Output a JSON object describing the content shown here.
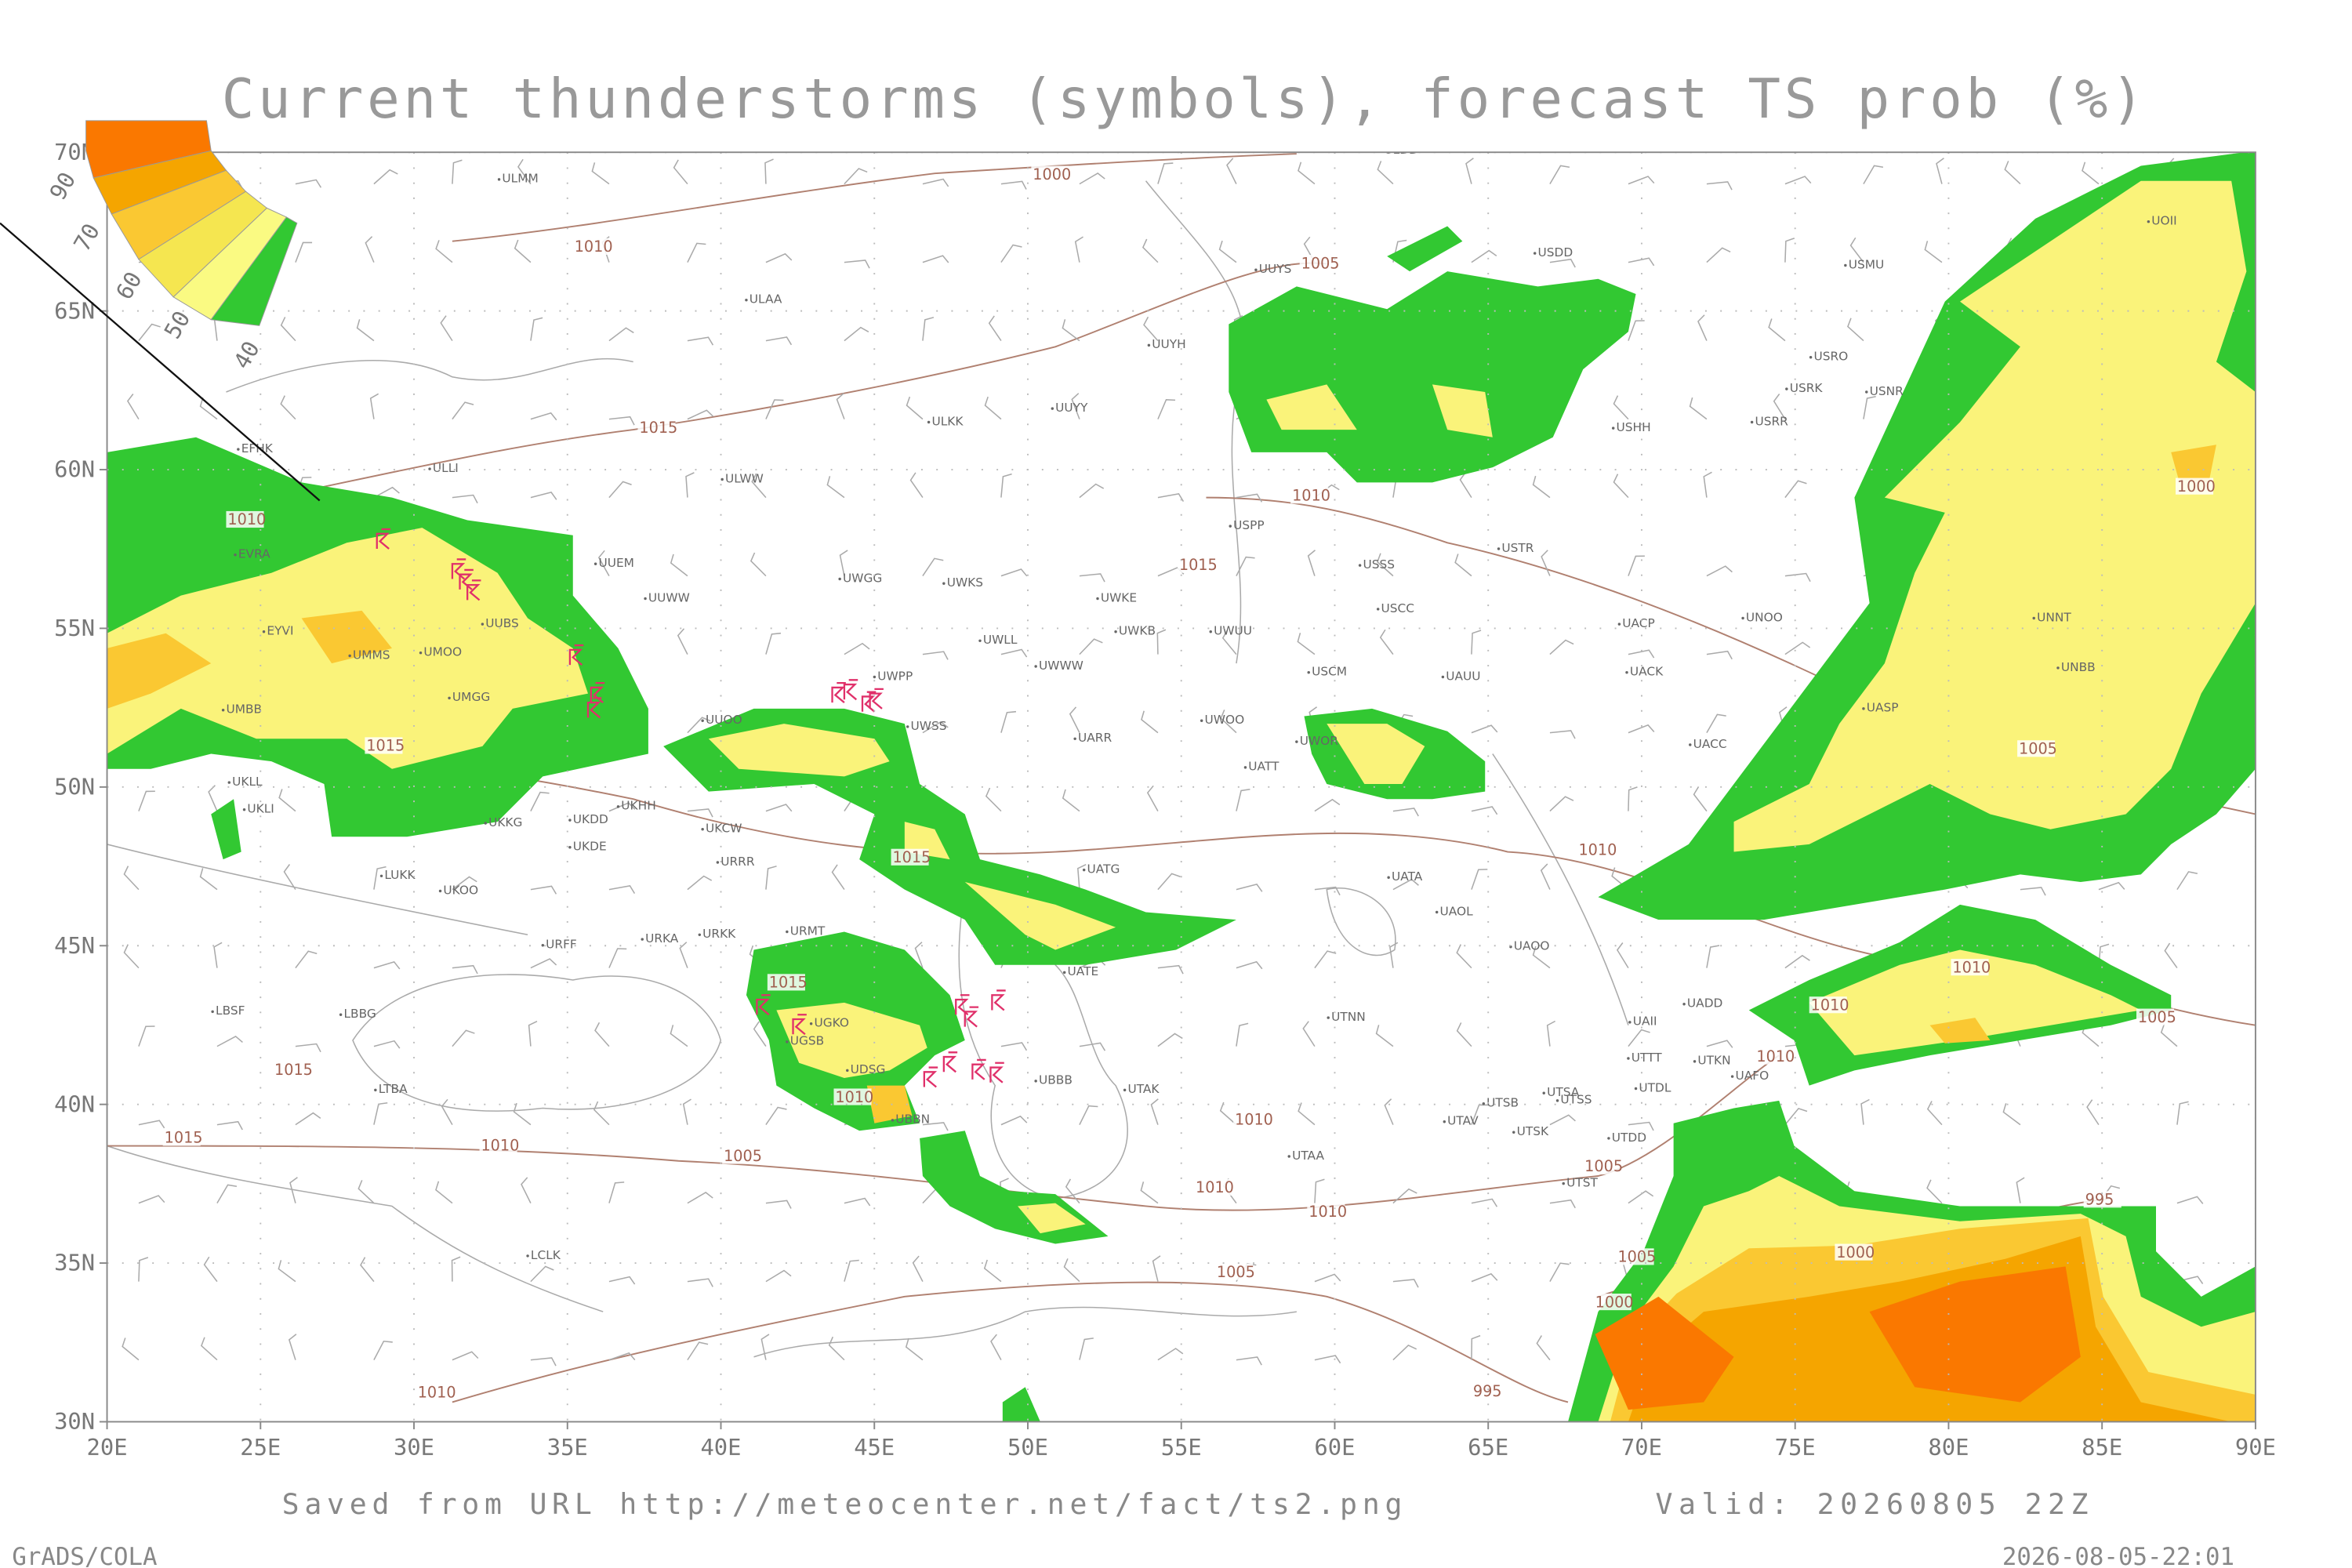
{
  "header": {
    "title": "Current thunderstorms (symbols), forecast TS prob (%)"
  },
  "axes": {
    "lat_ticks": [
      {
        "value": 70,
        "label": "70N"
      },
      {
        "value": 65,
        "label": "65N"
      },
      {
        "value": 60,
        "label": "60N"
      },
      {
        "value": 55,
        "label": "55N"
      },
      {
        "value": 50,
        "label": "50N"
      },
      {
        "value": 45,
        "label": "45N"
      },
      {
        "value": 40,
        "label": "40N"
      },
      {
        "value": 35,
        "label": "35N"
      },
      {
        "value": 30,
        "label": "30N"
      }
    ],
    "lon_ticks": [
      {
        "value": 20,
        "label": "20E"
      },
      {
        "value": 25,
        "label": "25E"
      },
      {
        "value": 30,
        "label": "30E"
      },
      {
        "value": 35,
        "label": "35E"
      },
      {
        "value": 40,
        "label": "40E"
      },
      {
        "value": 45,
        "label": "45E"
      },
      {
        "value": 50,
        "label": "50E"
      },
      {
        "value": 55,
        "label": "55E"
      },
      {
        "value": 60,
        "label": "60E"
      },
      {
        "value": 65,
        "label": "65E"
      },
      {
        "value": 70,
        "label": "70E"
      },
      {
        "value": 75,
        "label": "75E"
      },
      {
        "value": 80,
        "label": "80E"
      },
      {
        "value": 85,
        "label": "85E"
      },
      {
        "value": 90,
        "label": "90E"
      }
    ],
    "grid": true
  },
  "legend": {
    "levels": [
      90,
      70,
      60,
      50,
      40
    ],
    "colors": [
      "#fa7800",
      "#f5a500",
      "#fac832",
      "#f5e650",
      "#fafa82",
      "#32c832"
    ]
  },
  "map": {
    "stations": [
      "ULMM",
      "ULDD",
      "UUYS",
      "USDD",
      "UOII",
      "USMU",
      "ULAA",
      "UUYH",
      "USRO",
      "USRK",
      "USNR",
      "UUYY",
      "ULKK",
      "USHH",
      "USRR",
      "ULLI",
      "EFHK",
      "ULWW",
      "USPP",
      "UUEM",
      "USSS",
      "USTR",
      "EVRA",
      "UWGG",
      "UWKS",
      "UWKE",
      "UWKB",
      "UWUU",
      "USCC",
      "UACP",
      "UNOO",
      "UNNT",
      "UUWW",
      "UUBS",
      "EYVI",
      "UMMS",
      "UMOO",
      "UWLL",
      "UWWW",
      "USCM",
      "UAUU",
      "UACK",
      "UNBB",
      "UWPP",
      "UMGG",
      "UMBB",
      "UUOO",
      "UWSS",
      "UWOO",
      "UARR",
      "UWOR",
      "UATT",
      "UACC",
      "UASP",
      "UKLL",
      "UKLI",
      "UKHH",
      "UKCW",
      "UKKG",
      "UKDD",
      "UKDE",
      "URRR",
      "UATG",
      "LUKK",
      "UKOO",
      "UATA",
      "UAOL",
      "UAOO",
      "URFF",
      "URKA",
      "URKK",
      "URMT",
      "UATE",
      "LBSF",
      "LBBG",
      "UADD",
      "UAII",
      "UTNN",
      "UTTT",
      "UTKN",
      "UAFO",
      "UBBB",
      "UTAK",
      "LTBA",
      "UTSA",
      "UTSB",
      "UTSS",
      "UTDL",
      "UTAV",
      "UTSK",
      "UTDD",
      "UTAA",
      "UTST",
      "LCLK",
      "UGSB",
      "UDSG",
      "UBBN",
      "UGKO"
    ],
    "isobar_labels": [
      "1000",
      "1010",
      "1005",
      "1015",
      "1010",
      "1010",
      "1015",
      "1000",
      "1015",
      "1005",
      "1015",
      "1010",
      "1010",
      "1015",
      "1010",
      "1005",
      "1010",
      "1015",
      "1010",
      "1015",
      "1010",
      "1005",
      "1010",
      "1005",
      "1010",
      "1010",
      "995",
      "1000",
      "1005",
      "1005",
      "1000",
      "995",
      "1010"
    ]
  },
  "footer": {
    "source": "Saved from URL http://meteocenter.net/fact/ts2.png",
    "valid": "Valid: 20260805 22Z",
    "credit": "GrADS/COLA",
    "timestamp": "2026-08-05-22:01"
  }
}
